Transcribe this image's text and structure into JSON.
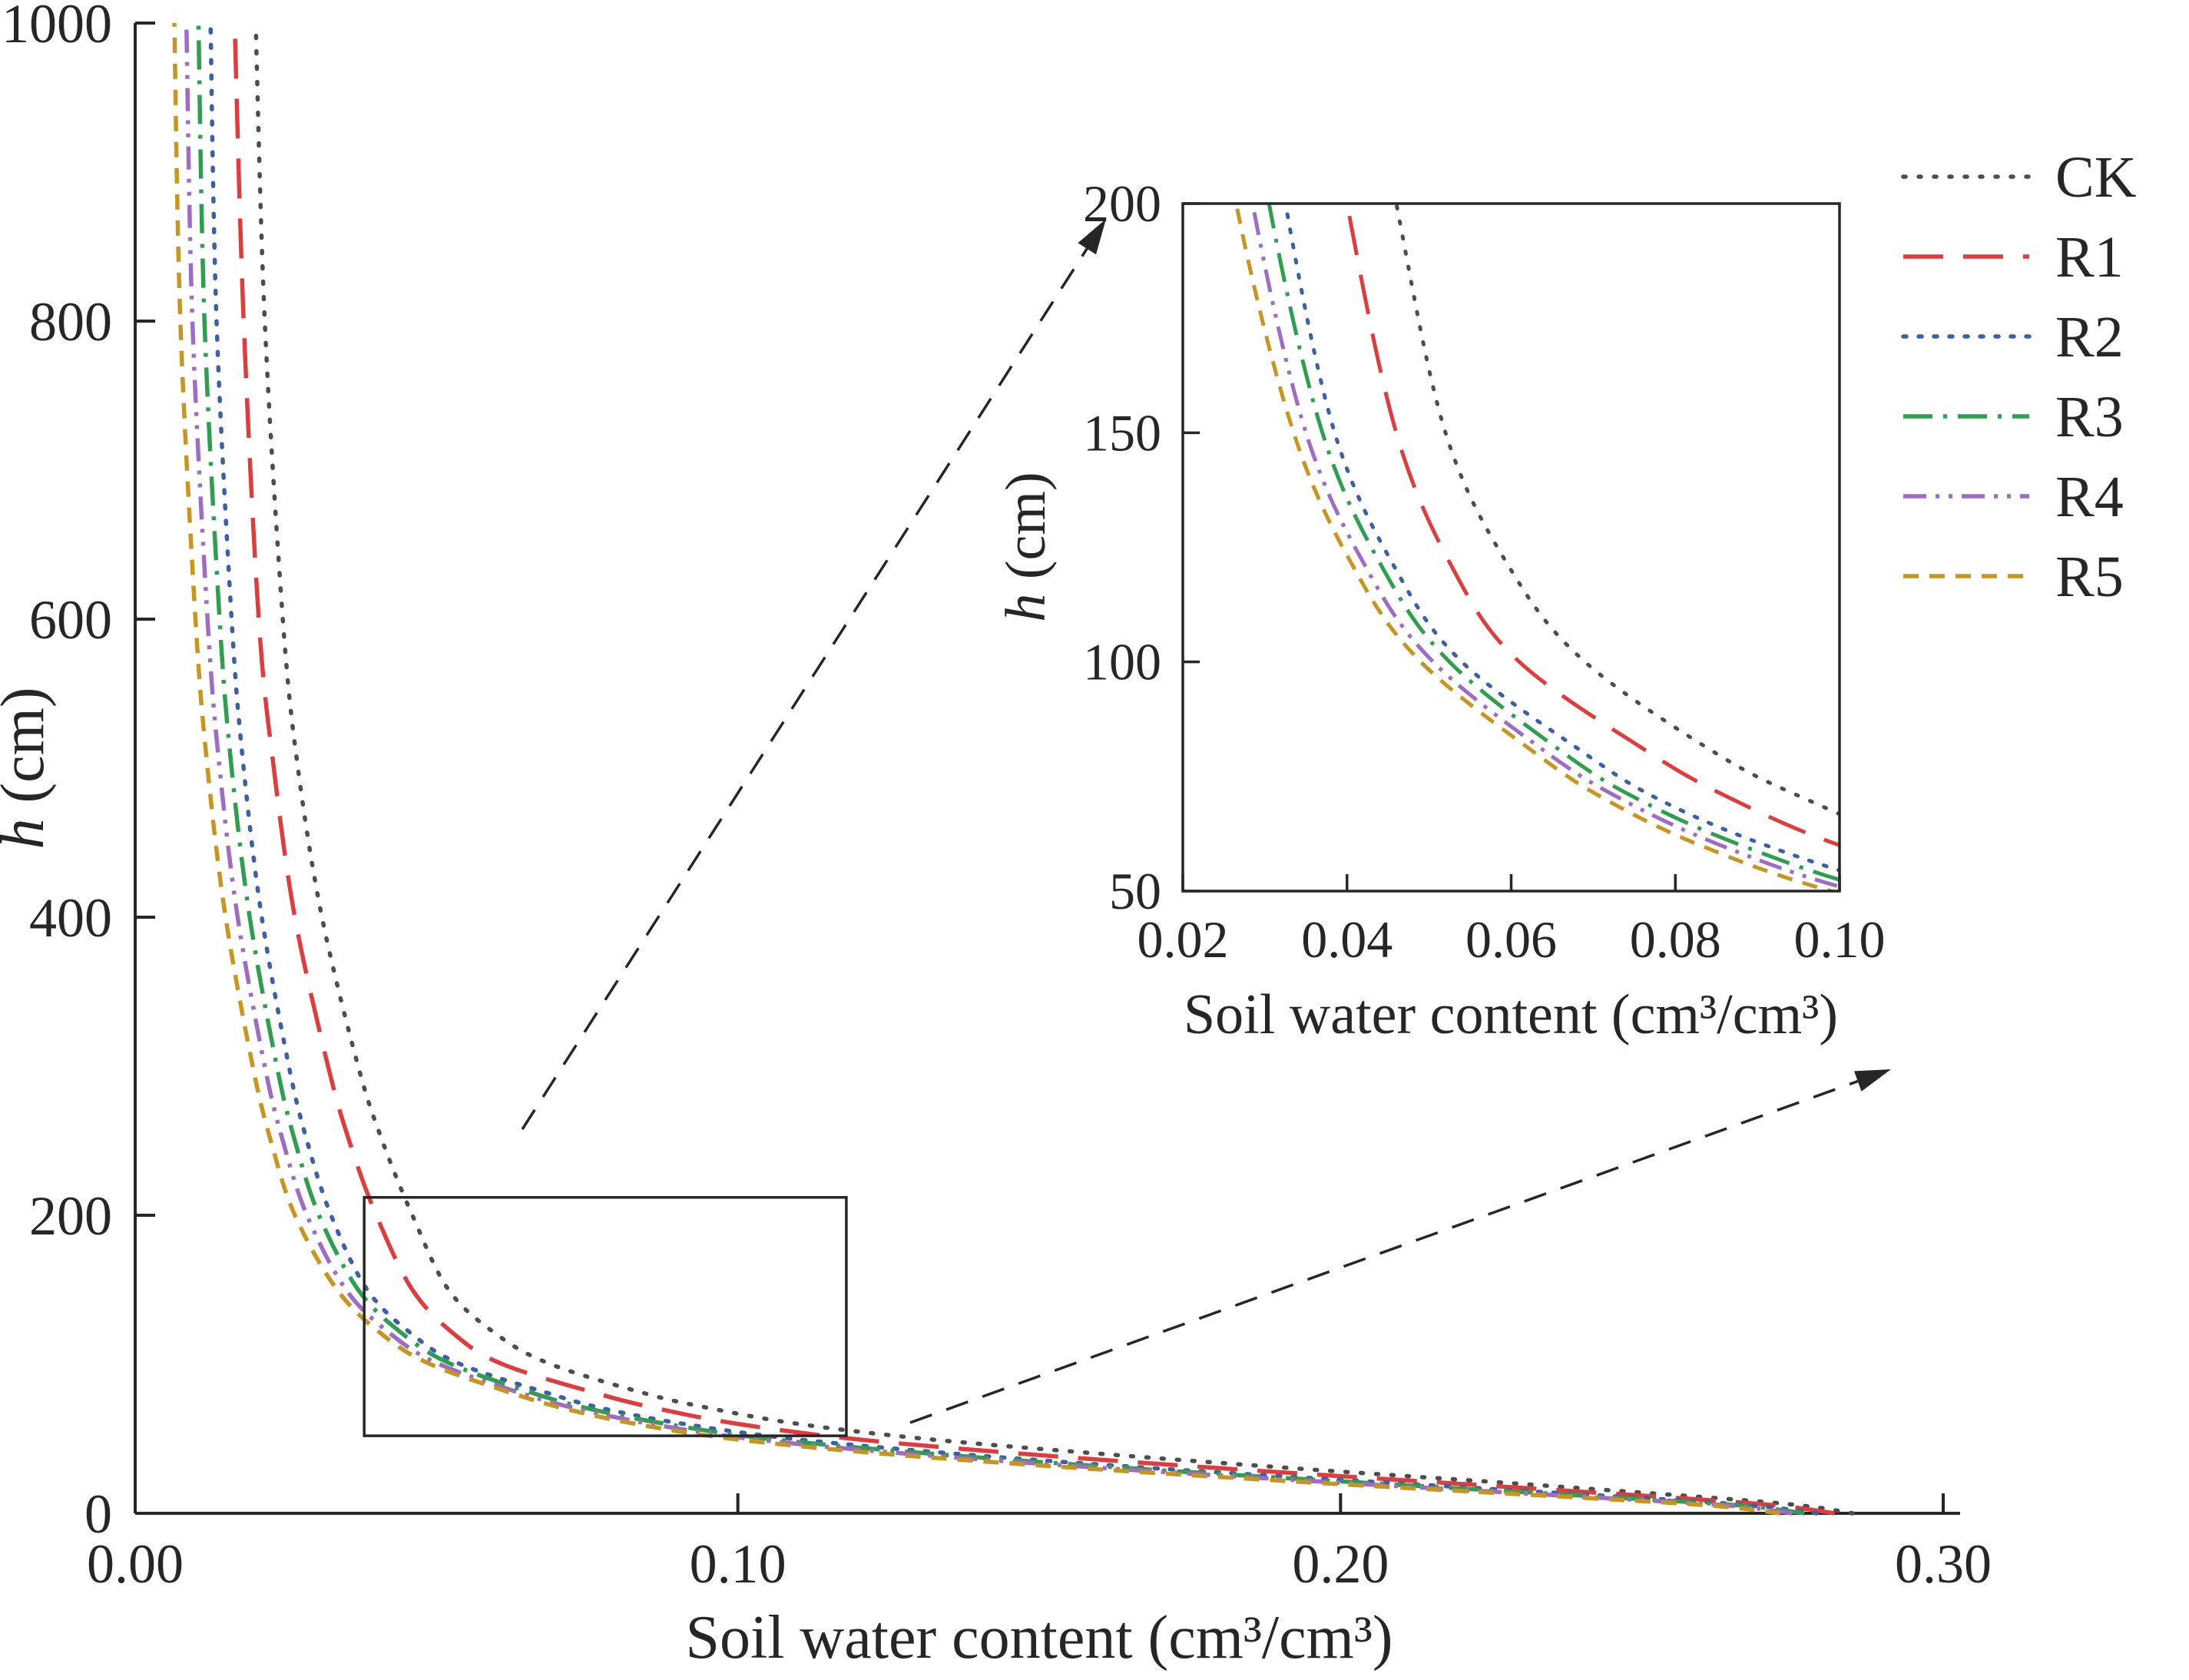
{
  "figure": {
    "background": "#ffffff",
    "axis_color": "#262626"
  },
  "chart_data": {
    "type": "line",
    "description": "Soil water retention curves for six treatments with zoomed inset",
    "main_plot": {
      "xlabel": "Soil water content (cm³/cm³)",
      "ylabel_italic": "h",
      "ylabel_rest": " (cm)",
      "xlim": [
        0.0,
        0.3
      ],
      "ylim": [
        0,
        1000
      ],
      "xtick_values": [
        0.0,
        0.1,
        0.2,
        0.3
      ],
      "xtick_labels": [
        "0.00",
        "0.10",
        "0.20",
        "0.30"
      ],
      "ytick_values": [
        0,
        200,
        400,
        600,
        800,
        1000
      ],
      "ytick_labels": [
        "0",
        "200",
        "400",
        "600",
        "800",
        "1000"
      ],
      "grid": false
    },
    "inset_plot": {
      "xlabel": "Soil water content (cm³/cm³)",
      "ylabel_italic": "h",
      "ylabel_rest": " (cm)",
      "xlim": [
        0.02,
        0.1
      ],
      "ylim": [
        50,
        200
      ],
      "xtick_values": [
        0.02,
        0.04,
        0.06,
        0.08,
        0.1
      ],
      "xtick_labels": [
        "0.02",
        "0.04",
        "0.06",
        "0.08",
        "0.10"
      ],
      "ytick_values": [
        50,
        100,
        150,
        200
      ],
      "ytick_labels": [
        "50",
        "100",
        "150",
        "200"
      ]
    },
    "zoom_rect": {
      "x0": 0.038,
      "x1": 0.118,
      "h0": 52,
      "h1": 212
    },
    "h_values": [
      0,
      5,
      10,
      20,
      30,
      40,
      50,
      60,
      70,
      80,
      100,
      120,
      150,
      200,
      250,
      300,
      400,
      500,
      600,
      800,
      1000
    ],
    "series": [
      {
        "name": "CK",
        "color": "#4d4d4d",
        "dash": "dot",
        "theta": [
          0.285,
          0.277,
          0.263,
          0.229,
          0.193,
          0.16,
          0.131,
          0.11,
          0.096,
          0.085,
          0.069,
          0.06,
          0.052,
          0.046,
          0.041,
          0.037,
          0.031,
          0.027,
          0.0245,
          0.0215,
          0.02
        ]
      },
      {
        "name": "R1",
        "color": "#e03c3e",
        "dash": "longdash",
        "theta": [
          0.282,
          0.273,
          0.257,
          0.219,
          0.181,
          0.147,
          0.119,
          0.1,
          0.087,
          0.077,
          0.061,
          0.053,
          0.046,
          0.04,
          0.0355,
          0.032,
          0.0265,
          0.023,
          0.0205,
          0.018,
          0.0165
        ]
      },
      {
        "name": "R2",
        "color": "#3c5fa8",
        "dash": "dot2",
        "theta": [
          0.279,
          0.269,
          0.251,
          0.21,
          0.17,
          0.136,
          0.109,
          0.091,
          0.078,
          0.069,
          0.054,
          0.046,
          0.0385,
          0.0325,
          0.0285,
          0.0255,
          0.021,
          0.018,
          0.016,
          0.0135,
          0.0125
        ]
      },
      {
        "name": "R3",
        "color": "#2e9e4f",
        "dash": "dashdot",
        "theta": [
          0.277,
          0.267,
          0.248,
          0.206,
          0.166,
          0.132,
          0.105,
          0.088,
          0.0755,
          0.0665,
          0.0525,
          0.0445,
          0.037,
          0.0305,
          0.0265,
          0.0235,
          0.019,
          0.016,
          0.014,
          0.0115,
          0.0105
        ]
      },
      {
        "name": "R4",
        "color": "#9e6bc5",
        "dash": "dashdotdot",
        "theta": [
          0.275,
          0.265,
          0.245,
          0.202,
          0.162,
          0.128,
          0.102,
          0.0855,
          0.0735,
          0.0645,
          0.0505,
          0.0425,
          0.035,
          0.0285,
          0.0245,
          0.0215,
          0.017,
          0.014,
          0.012,
          0.0095,
          0.0085
        ]
      },
      {
        "name": "R5",
        "color": "#c8951f",
        "dash": "shortdash",
        "theta": [
          0.273,
          0.262,
          0.242,
          0.198,
          0.158,
          0.124,
          0.099,
          0.083,
          0.0715,
          0.063,
          0.049,
          0.041,
          0.0335,
          0.0265,
          0.0225,
          0.0195,
          0.015,
          0.012,
          0.01,
          0.0075,
          0.0065
        ]
      }
    ],
    "legend": {
      "position": "top-right",
      "entries": [
        "CK",
        "R1",
        "R2",
        "R3",
        "R4",
        "R5"
      ]
    }
  }
}
